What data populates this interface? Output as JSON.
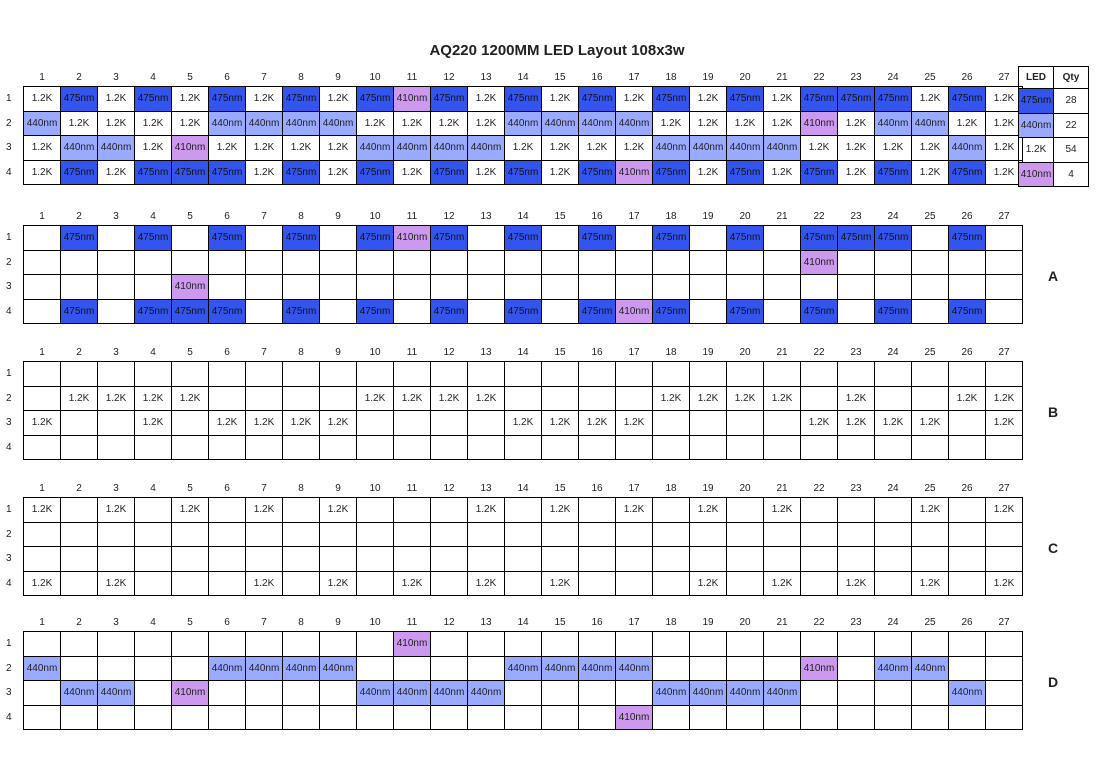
{
  "title": "AQ220  1200MM LED Layout 108x3w",
  "columns": [
    "1",
    "2",
    "3",
    "4",
    "5",
    "6",
    "7",
    "8",
    "9",
    "10",
    "11",
    "12",
    "13",
    "14",
    "15",
    "16",
    "17",
    "18",
    "19",
    "20",
    "21",
    "22",
    "23",
    "24",
    "25",
    "26",
    "27"
  ],
  "row_labels": [
    "1",
    "2",
    "3",
    "4"
  ],
  "colors": {
    "475nm": "#3355ee",
    "440nm": "#99aaff",
    "410nm": "#cc99ee",
    "1.2K": "#ffffff"
  },
  "main": [
    [
      "1.2K",
      "475nm",
      "1.2K",
      "475nm",
      "1.2K",
      "475nm",
      "1.2K",
      "475nm",
      "1.2K",
      "475nm",
      "410nm",
      "475nm",
      "1.2K",
      "475nm",
      "1.2K",
      "475nm",
      "1.2K",
      "475nm",
      "1.2K",
      "475nm",
      "1.2K",
      "475nm",
      "475nm",
      "475nm",
      "1.2K",
      "475nm",
      "1.2K"
    ],
    [
      "440nm",
      "1.2K",
      "1.2K",
      "1.2K",
      "1.2K",
      "440nm",
      "440nm",
      "440nm",
      "440nm",
      "1.2K",
      "1.2K",
      "1.2K",
      "1.2K",
      "440nm",
      "440nm",
      "440nm",
      "440nm",
      "1.2K",
      "1.2K",
      "1.2K",
      "1.2K",
      "410nm",
      "1.2K",
      "440nm",
      "440nm",
      "1.2K",
      "1.2K"
    ],
    [
      "1.2K",
      "440nm",
      "440nm",
      "1.2K",
      "410nm",
      "1.2K",
      "1.2K",
      "1.2K",
      "1.2K",
      "440nm",
      "440nm",
      "440nm",
      "440nm",
      "1.2K",
      "1.2K",
      "1.2K",
      "1.2K",
      "440nm",
      "440nm",
      "440nm",
      "440nm",
      "1.2K",
      "1.2K",
      "1.2K",
      "1.2K",
      "440nm",
      "1.2K"
    ],
    [
      "1.2K",
      "475nm",
      "1.2K",
      "475nm",
      "475nm",
      "475nm",
      "1.2K",
      "475nm",
      "1.2K",
      "475nm",
      "1.2K",
      "475nm",
      "1.2K",
      "475nm",
      "1.2K",
      "475nm",
      "410nm",
      "475nm",
      "1.2K",
      "475nm",
      "1.2K",
      "475nm",
      "1.2K",
      "475nm",
      "1.2K",
      "475nm",
      "1.2K"
    ]
  ],
  "legend": {
    "headers": [
      "LED",
      "Qty"
    ],
    "rows": [
      [
        "475nm",
        "28"
      ],
      [
        "440nm",
        "22"
      ],
      [
        "1.2K",
        "54"
      ],
      [
        "410nm",
        "4"
      ]
    ]
  },
  "sections": [
    {
      "label": "A",
      "keep": [
        "475nm",
        "410nm"
      ]
    },
    {
      "label": "B",
      "keep": [
        "1.2K"
      ],
      "rows_only": [
        1,
        2
      ]
    },
    {
      "label": "C",
      "keep": [
        "1.2K"
      ],
      "rows_only": [
        0,
        3
      ]
    },
    {
      "label": "D",
      "keep": [
        "440nm",
        "410nm"
      ]
    }
  ]
}
